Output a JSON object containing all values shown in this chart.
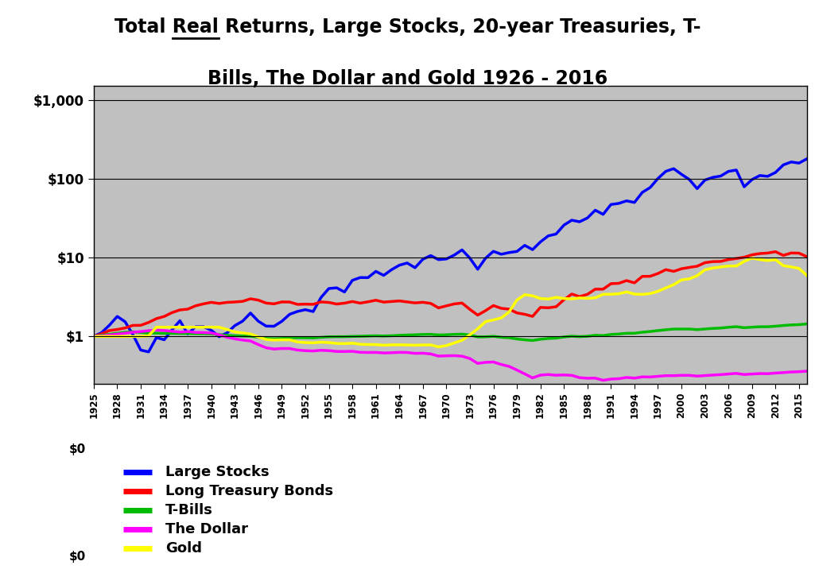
{
  "title_line1": "Total Real Returns, Large Stocks, 20-year Treasuries, T-",
  "title_line2": "Bills, The Dollar and Gold 1926 - 2016",
  "background_color": "#c0c0c0",
  "fig_bg_color": "#ffffff",
  "years": [
    1925,
    1926,
    1927,
    1928,
    1929,
    1930,
    1931,
    1932,
    1933,
    1934,
    1935,
    1936,
    1937,
    1938,
    1939,
    1940,
    1941,
    1942,
    1943,
    1944,
    1945,
    1946,
    1947,
    1948,
    1949,
    1950,
    1951,
    1952,
    1953,
    1954,
    1955,
    1956,
    1957,
    1958,
    1959,
    1960,
    1961,
    1962,
    1963,
    1964,
    1965,
    1966,
    1967,
    1968,
    1969,
    1970,
    1971,
    1972,
    1973,
    1974,
    1975,
    1976,
    1977,
    1978,
    1979,
    1980,
    1981,
    1982,
    1983,
    1984,
    1985,
    1986,
    1987,
    1988,
    1989,
    1990,
    1991,
    1992,
    1993,
    1994,
    1995,
    1996,
    1997,
    1998,
    1999,
    2000,
    2001,
    2002,
    2003,
    2004,
    2005,
    2006,
    2007,
    2008,
    2009,
    2010,
    2011,
    2012,
    2013,
    2014,
    2015,
    2016
  ],
  "large_stocks": [
    1.0,
    1.117,
    1.387,
    1.794,
    1.538,
    1.052,
    0.672,
    0.637,
    0.967,
    0.908,
    1.215,
    1.584,
    1.074,
    1.326,
    1.326,
    1.197,
    0.993,
    1.106,
    1.37,
    1.563,
    1.98,
    1.561,
    1.352,
    1.346,
    1.555,
    1.908,
    2.074,
    2.183,
    2.067,
    3.113,
    4.05,
    4.135,
    3.662,
    5.141,
    5.583,
    5.568,
    6.684,
    5.947,
    7.016,
    8.0,
    8.531,
    7.434,
    9.521,
    10.602,
    9.417,
    9.605,
    10.738,
    12.524,
    9.829,
    7.103,
    9.813,
    12.001,
    11.022,
    11.576,
    11.952,
    14.283,
    12.61,
    15.792,
    18.844,
    19.884,
    25.79,
    29.768,
    28.428,
    31.782,
    39.882,
    35.311,
    47.06,
    48.655,
    52.36,
    49.984,
    67.047,
    77.204,
    100.649,
    124.041,
    134.026,
    113.716,
    97.768,
    74.783,
    96.226,
    104.068,
    108.042,
    123.862,
    128.765,
    78.945,
    97.476,
    109.74,
    107.218,
    120.012,
    149.621,
    162.952,
    157.76,
    178.58
  ],
  "long_bonds": [
    1.0,
    1.077,
    1.187,
    1.225,
    1.28,
    1.38,
    1.384,
    1.505,
    1.681,
    1.793,
    2.007,
    2.168,
    2.218,
    2.446,
    2.587,
    2.706,
    2.619,
    2.702,
    2.735,
    2.784,
    3.001,
    2.889,
    2.648,
    2.59,
    2.737,
    2.731,
    2.55,
    2.567,
    2.551,
    2.74,
    2.698,
    2.574,
    2.643,
    2.771,
    2.645,
    2.749,
    2.877,
    2.725,
    2.773,
    2.821,
    2.739,
    2.662,
    2.708,
    2.626,
    2.301,
    2.441,
    2.583,
    2.651,
    2.204,
    1.864,
    2.124,
    2.464,
    2.272,
    2.219,
    1.987,
    1.908,
    1.796,
    2.335,
    2.307,
    2.378,
    2.918,
    3.448,
    3.199,
    3.419,
    3.977,
    3.974,
    4.664,
    4.717,
    5.108,
    4.779,
    5.775,
    5.79,
    6.278,
    7.029,
    6.68,
    7.215,
    7.495,
    7.774,
    8.613,
    8.887,
    8.939,
    9.438,
    9.734,
    10.095,
    10.832,
    11.239,
    11.408,
    11.871,
    10.655,
    11.432,
    11.381,
    10.254
  ],
  "tbills": [
    1.0,
    1.033,
    1.064,
    1.096,
    1.127,
    1.147,
    1.121,
    1.101,
    1.101,
    1.094,
    1.094,
    1.089,
    1.091,
    1.085,
    1.083,
    1.076,
    1.053,
    1.034,
    1.021,
    1.013,
    1.008,
    0.979,
    0.944,
    0.933,
    0.942,
    0.963,
    0.963,
    0.963,
    0.958,
    0.974,
    0.989,
    0.992,
    0.993,
    1.001,
    1.005,
    1.012,
    1.019,
    1.013,
    1.021,
    1.033,
    1.043,
    1.05,
    1.06,
    1.063,
    1.044,
    1.051,
    1.062,
    1.069,
    1.046,
    0.986,
    0.989,
    1.004,
    0.976,
    0.962,
    0.929,
    0.906,
    0.889,
    0.921,
    0.942,
    0.953,
    0.984,
    1.008,
    0.994,
    1.006,
    1.034,
    1.026,
    1.059,
    1.073,
    1.096,
    1.098,
    1.131,
    1.155,
    1.186,
    1.215,
    1.24,
    1.241,
    1.241,
    1.22,
    1.242,
    1.265,
    1.278,
    1.307,
    1.33,
    1.29,
    1.31,
    1.327,
    1.327,
    1.348,
    1.376,
    1.399,
    1.411,
    1.441
  ],
  "dollar": [
    1.0,
    1.017,
    1.042,
    1.069,
    1.099,
    1.131,
    1.152,
    1.182,
    1.201,
    1.187,
    1.161,
    1.134,
    1.152,
    1.125,
    1.12,
    1.107,
    1.048,
    0.978,
    0.932,
    0.9,
    0.876,
    0.788,
    0.718,
    0.692,
    0.703,
    0.703,
    0.672,
    0.66,
    0.654,
    0.667,
    0.661,
    0.645,
    0.644,
    0.648,
    0.629,
    0.626,
    0.627,
    0.617,
    0.621,
    0.628,
    0.626,
    0.61,
    0.613,
    0.6,
    0.563,
    0.568,
    0.571,
    0.562,
    0.524,
    0.455,
    0.469,
    0.474,
    0.441,
    0.417,
    0.375,
    0.335,
    0.298,
    0.323,
    0.329,
    0.322,
    0.325,
    0.321,
    0.3,
    0.295,
    0.296,
    0.278,
    0.288,
    0.291,
    0.302,
    0.296,
    0.307,
    0.306,
    0.312,
    0.318,
    0.318,
    0.321,
    0.321,
    0.314,
    0.319,
    0.324,
    0.328,
    0.334,
    0.34,
    0.329,
    0.334,
    0.338,
    0.337,
    0.343,
    0.348,
    0.354,
    0.357,
    0.363
  ],
  "gold": [
    1.0,
    1.0,
    1.0,
    1.0,
    1.0,
    1.0,
    1.0,
    1.017,
    1.31,
    1.31,
    1.31,
    1.31,
    1.31,
    1.31,
    1.31,
    1.31,
    1.31,
    1.225,
    1.141,
    1.107,
    1.076,
    0.985,
    0.915,
    0.899,
    0.906,
    0.906,
    0.851,
    0.836,
    0.83,
    0.846,
    0.836,
    0.815,
    0.812,
    0.822,
    0.795,
    0.789,
    0.788,
    0.774,
    0.781,
    0.783,
    0.779,
    0.773,
    0.779,
    0.78,
    0.737,
    0.766,
    0.826,
    0.894,
    1.05,
    1.25,
    1.54,
    1.62,
    1.716,
    2.042,
    2.888,
    3.38,
    3.274,
    3.027,
    2.975,
    3.133,
    3.024,
    2.994,
    3.079,
    3.042,
    3.091,
    3.421,
    3.424,
    3.476,
    3.671,
    3.442,
    3.412,
    3.497,
    3.735,
    4.119,
    4.524,
    5.203,
    5.372,
    5.887,
    7.008,
    7.366,
    7.604,
    7.819,
    7.819,
    8.947,
    9.838,
    9.44,
    9.164,
    9.398,
    7.901,
    7.614,
    7.283,
    5.928
  ],
  "yticks": [
    1.0,
    10.0,
    100.0,
    1000.0
  ],
  "ytick_labels": [
    "$1",
    "$10",
    "$100",
    "$1,000"
  ],
  "legend_labels": [
    "Large Stocks",
    "Long Treasury Bonds",
    "T-Bills",
    "The Dollar",
    "Gold"
  ],
  "line_colors": [
    "#0000ff",
    "#ff0000",
    "#00bb00",
    "#ff00ff",
    "#ffff00"
  ],
  "line_widths": [
    2.5,
    2.5,
    2.5,
    2.5,
    2.5
  ]
}
